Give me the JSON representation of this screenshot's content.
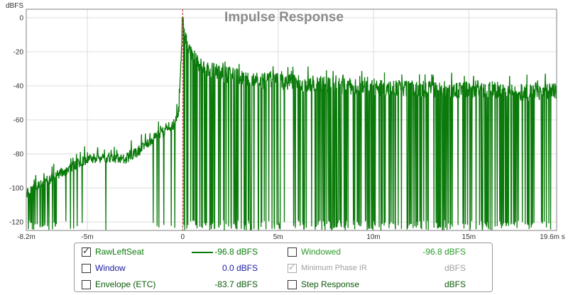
{
  "chart_data": {
    "type": "line",
    "title": "Impulse Response",
    "ylabel": "dBFS",
    "x_unit": "s",
    "xlim": [
      -8.2,
      19.6
    ],
    "ylim": [
      -125,
      5
    ],
    "x_ticks": [
      {
        "value": -8.2,
        "label": "-8.2m"
      },
      {
        "value": -5,
        "label": "-5m"
      },
      {
        "value": 0,
        "label": "0"
      },
      {
        "value": 5,
        "label": "5m"
      },
      {
        "value": 10,
        "label": "10m"
      },
      {
        "value": 15,
        "label": "15m"
      },
      {
        "value": 19.6,
        "label": "19.6m s"
      }
    ],
    "y_ticks": [
      0,
      -20,
      -40,
      -60,
      -80,
      -100,
      -120
    ],
    "grid": true,
    "impulse_marker_x": 0,
    "series": [
      {
        "name": "RawLeftSeat",
        "color": "#0a7a0a",
        "envelope": [
          [
            -8.2,
            -100
          ],
          [
            -7.8,
            -96
          ],
          [
            -7.0,
            -92
          ],
          [
            -6.0,
            -86
          ],
          [
            -5.0,
            -80
          ],
          [
            -4.0,
            -79
          ],
          [
            -3.0,
            -80
          ],
          [
            -2.0,
            -73
          ],
          [
            -1.5,
            -67
          ],
          [
            -1.0,
            -64
          ],
          [
            -0.5,
            -60
          ],
          [
            -0.2,
            -52
          ],
          [
            0.0,
            0
          ],
          [
            0.2,
            -8
          ],
          [
            0.5,
            -17
          ],
          [
            1.0,
            -24
          ],
          [
            2.0,
            -28
          ],
          [
            3.0,
            -30
          ],
          [
            4.0,
            -32
          ],
          [
            6.0,
            -33
          ],
          [
            8.0,
            -35
          ],
          [
            10.0,
            -36
          ],
          [
            12.0,
            -37
          ],
          [
            14.0,
            -38
          ],
          [
            16.0,
            -37
          ],
          [
            18.0,
            -39
          ],
          [
            19.6,
            -38
          ]
        ],
        "floor": -125
      }
    ]
  },
  "legend": {
    "rows": [
      {
        "label": "RawLeftSeat",
        "checked": true,
        "dim": false,
        "value": "-96.8 dBFS",
        "color": "#0a7a0a",
        "value_color": "#0a7a0a"
      },
      {
        "label": "Window",
        "checked": false,
        "dim": false,
        "value": "0.0 dBFS",
        "color": "#1a1aa0",
        "value_color": "#1a1aa0"
      },
      {
        "label": "Envelope (ETC)",
        "checked": false,
        "dim": false,
        "value": "-83.7 dBFS",
        "color": "#0a5a0a",
        "value_color": "#0a5a0a"
      },
      {
        "label": "Windowed",
        "checked": false,
        "dim": false,
        "value": "-96.8 dBFS",
        "color": "#2a9a2a",
        "value_color": "#2a9a2a"
      },
      {
        "label": "Minimum Phase IR",
        "checked": true,
        "dim": true,
        "value": "dBFS",
        "color": "#a0a0a0",
        "value_color": "#a0a0a0"
      },
      {
        "label": "Step Response",
        "checked": false,
        "dim": false,
        "value": "dBFS",
        "color": "#0a5a0a",
        "value_color": "#0a5a0a"
      }
    ]
  }
}
